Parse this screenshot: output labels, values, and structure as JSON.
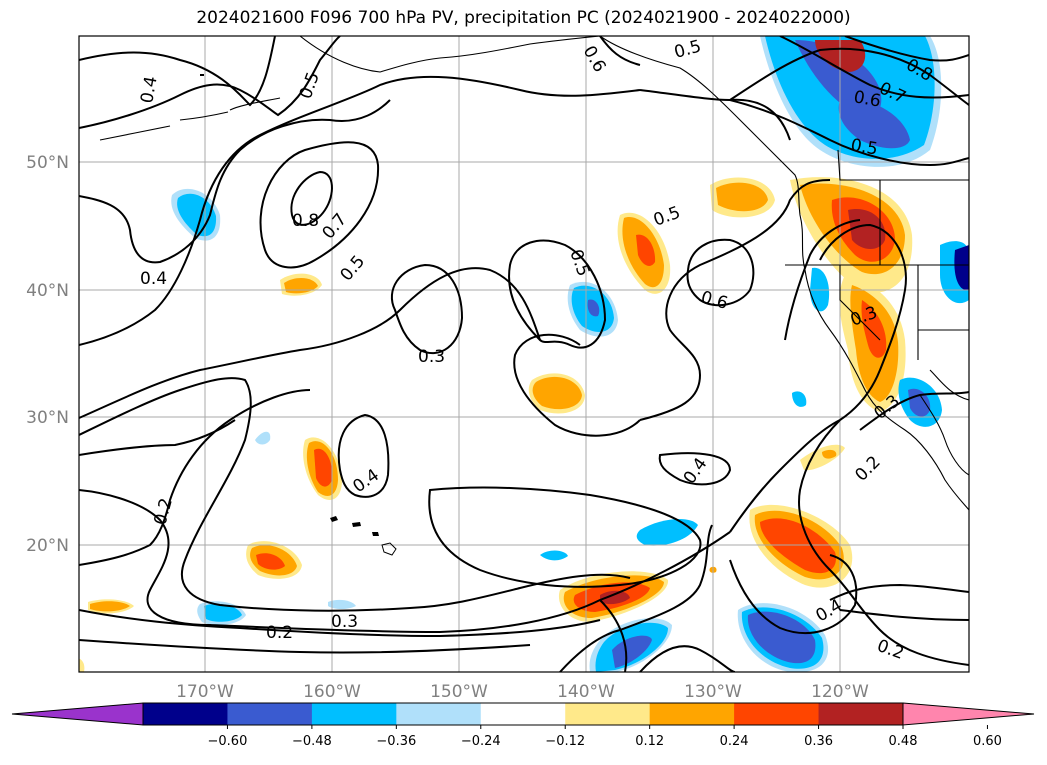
{
  "title": "2024021600 F096 700 hPa PV, precipitation PC (2024021900 - 2024022000)",
  "lat_labels": [
    "50°N",
    "40°N",
    "30°N",
    "20°N"
  ],
  "lon_labels": [
    "170°W",
    "160°W",
    "150°W",
    "140°W",
    "130°W",
    "120°W"
  ],
  "contour_labels": [
    "0.4",
    "0.5",
    "0.6",
    "0.5",
    "0.8",
    "0.7",
    "0.6",
    "0.5",
    "0.8",
    "0.7",
    "0.5",
    "0.4",
    "0.3",
    "0.5",
    "0.5",
    "0.6",
    "0.3",
    "0.3",
    "0.4",
    "0.4",
    "0.2",
    "0.2",
    "0.3",
    "0.2",
    "0.4",
    "0.2"
  ],
  "colorbar": {
    "ticks": [
      "−0.60",
      "−0.48",
      "−0.36",
      "−0.24",
      "−0.12",
      "0.12",
      "0.24",
      "0.36",
      "0.48",
      "0.60"
    ],
    "colors": [
      "#9a33cc",
      "#00008b",
      "#3a5bd0",
      "#00bfff",
      "#b0e0fa",
      "#ffffff",
      "#ffe98a",
      "#ffa500",
      "#ff4500",
      "#b22222",
      "#ff85ad"
    ]
  }
}
